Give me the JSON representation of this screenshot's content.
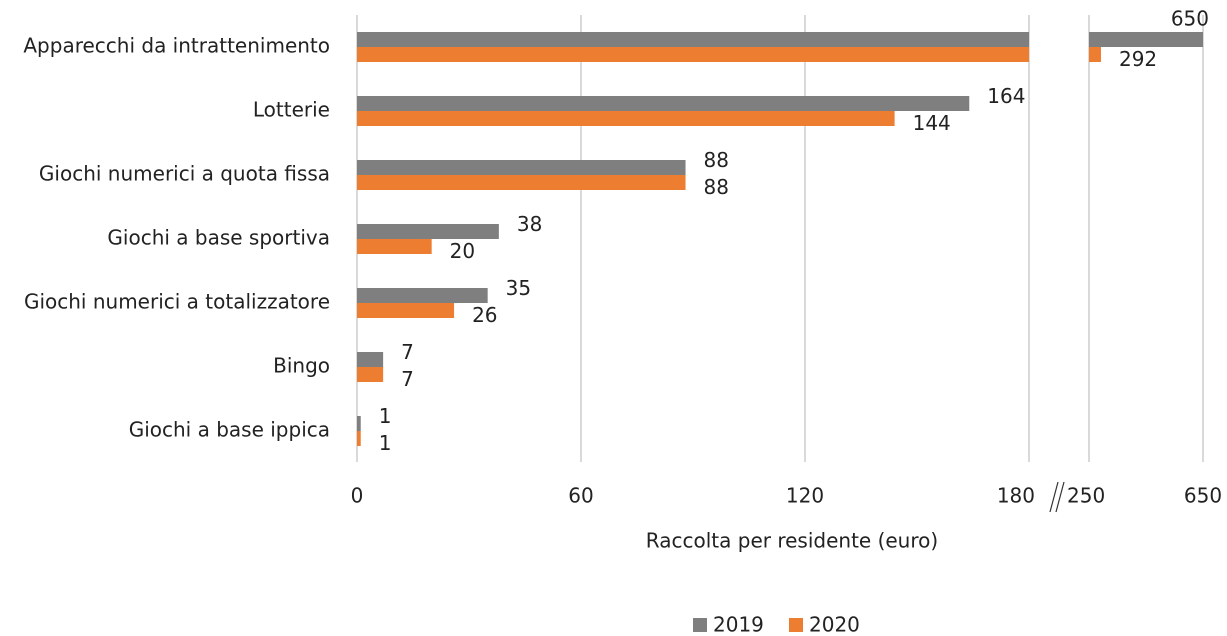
{
  "chart_data": {
    "type": "bar",
    "orientation": "horizontal",
    "categories": [
      "Apparecchi da intrattenimento",
      "Lotterie",
      "Giochi numerici a quota fissa",
      "Giochi a base sportiva",
      "Giochi numerici a totalizzatore",
      "Bingo",
      "Giochi a base ippica"
    ],
    "series": [
      {
        "name": "2019",
        "color": "#7f7f7f",
        "values": [
          650,
          164,
          88,
          38,
          35,
          7,
          1
        ]
      },
      {
        "name": "2020",
        "color": "#ed7d31",
        "values": [
          292,
          144,
          88,
          20,
          26,
          7,
          1
        ]
      }
    ],
    "x_label": "Raccolta per residente (euro)",
    "x_segments": [
      {
        "xlim": [
          0,
          180
        ],
        "xticks": [
          0,
          60,
          120,
          180
        ]
      },
      {
        "xlim": [
          250,
          650
        ],
        "xticks": [
          250,
          650
        ]
      }
    ],
    "grid": true,
    "legend": "bottom"
  }
}
